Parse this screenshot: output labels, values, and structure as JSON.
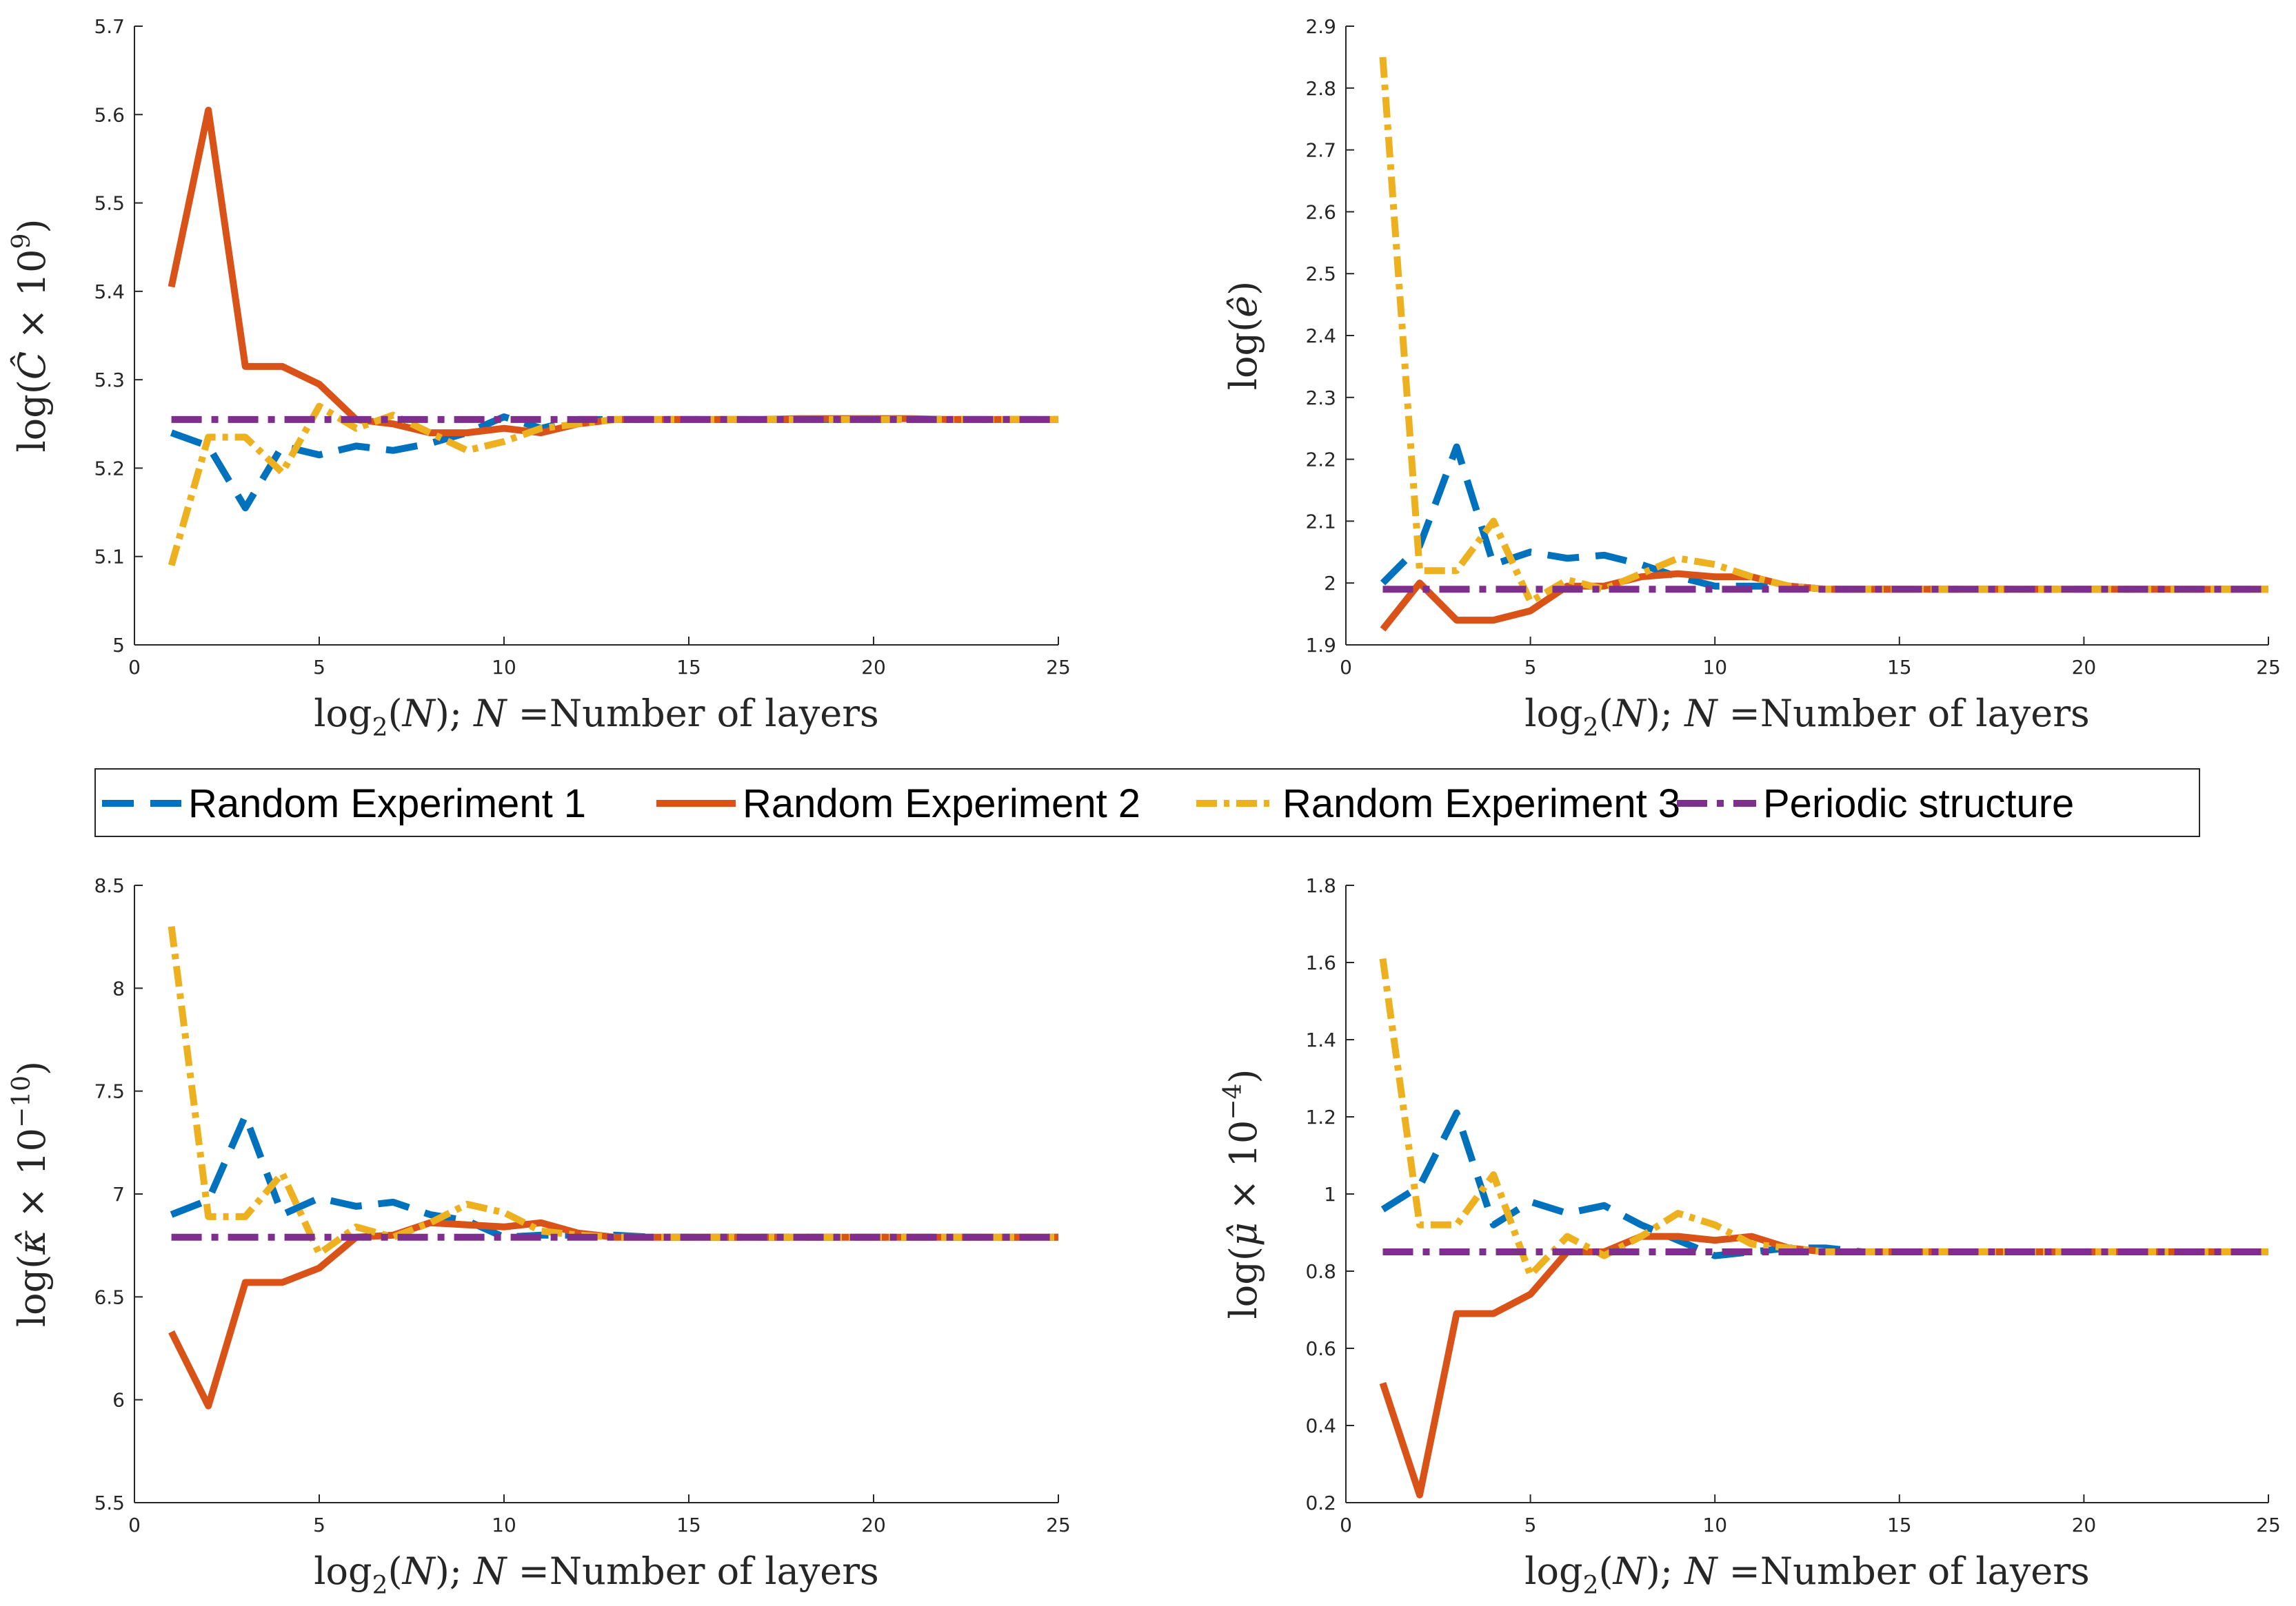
{
  "legend": [
    {
      "label": "Random Experiment 1",
      "color": "#0072BD",
      "style": "dashed"
    },
    {
      "label": "Random Experiment 2",
      "color": "#D95319",
      "style": "solid"
    },
    {
      "label": "Random Experiment 3",
      "color": "#EDB120",
      "style": "dashdot-fine"
    },
    {
      "label": "Periodic structure",
      "color": "#7E2F8E",
      "style": "dashdot"
    }
  ],
  "chart_data": [
    {
      "type": "line",
      "xlabel_parts": {
        "pre": "log",
        "sub": "2",
        "mid": "(N); ",
        "nvar": "N",
        "post": " =Number of layers"
      },
      "ylabel_parts": {
        "pre": "log(",
        "hat": "C",
        "times": " × 10",
        "sup": "9",
        "post": ")"
      },
      "xlim": [
        0,
        25
      ],
      "ylim": [
        5,
        5.7
      ],
      "xticks": [
        "0",
        "5",
        "10",
        "15",
        "20",
        "25"
      ],
      "yticks": [
        "5",
        "5.1",
        "5.2",
        "5.3",
        "5.4",
        "5.5",
        "5.6",
        "5.7"
      ],
      "x": [
        1,
        2,
        3,
        4,
        5,
        6,
        7,
        8,
        9,
        10,
        11,
        12,
        13,
        14,
        15,
        16,
        17,
        18,
        19,
        20,
        21,
        22,
        23,
        24,
        25
      ],
      "series": [
        {
          "name": "Random Experiment 1",
          "values": [
            5.24,
            5.225,
            5.155,
            5.225,
            5.215,
            5.225,
            5.22,
            5.228,
            5.24,
            5.258,
            5.245,
            5.255,
            5.255,
            5.255,
            5.255,
            5.255,
            5.255,
            5.255,
            5.255,
            5.255,
            5.255,
            5.255,
            5.255,
            5.255,
            5.255
          ]
        },
        {
          "name": "Random Experiment 2",
          "values": [
            5.405,
            5.605,
            5.315,
            5.315,
            5.295,
            5.255,
            5.25,
            5.24,
            5.24,
            5.245,
            5.24,
            5.25,
            5.255,
            5.255,
            5.255,
            5.255,
            5.255,
            5.256,
            5.256,
            5.256,
            5.256,
            5.255,
            5.255,
            5.255,
            5.255
          ]
        },
        {
          "name": "Random Experiment 3",
          "values": [
            5.09,
            5.235,
            5.235,
            5.195,
            5.27,
            5.245,
            5.26,
            5.24,
            5.22,
            5.23,
            5.245,
            5.25,
            5.255,
            5.255,
            5.255,
            5.255,
            5.255,
            5.255,
            5.255,
            5.255,
            5.255,
            5.255,
            5.255,
            5.255,
            5.255
          ]
        },
        {
          "name": "Periodic structure",
          "values": [
            5.255,
            5.255,
            5.255,
            5.255,
            5.255,
            5.255,
            5.255,
            5.255,
            5.255,
            5.255,
            5.255,
            5.255,
            5.255,
            5.255,
            5.255,
            5.255,
            5.255,
            5.255,
            5.255,
            5.255,
            5.255,
            5.255,
            5.255,
            5.255,
            5.255
          ]
        }
      ]
    },
    {
      "type": "line",
      "xlabel_parts": {
        "pre": "log",
        "sub": "2",
        "mid": "(N); ",
        "nvar": "N",
        "post": " =Number of layers"
      },
      "ylabel_parts": {
        "pre": "log(",
        "hat": "e",
        "times": "",
        "sup": "",
        "post": ")"
      },
      "xlim": [
        0,
        25
      ],
      "ylim": [
        1.9,
        2.9
      ],
      "xticks": [
        "0",
        "5",
        "10",
        "15",
        "20",
        "25"
      ],
      "yticks": [
        "1.9",
        "2",
        "2.1",
        "2.2",
        "2.3",
        "2.4",
        "2.5",
        "2.6",
        "2.7",
        "2.8",
        "2.9"
      ],
      "x": [
        1,
        2,
        3,
        4,
        5,
        6,
        7,
        8,
        9,
        10,
        11,
        12,
        13,
        14,
        15,
        16,
        17,
        18,
        19,
        20,
        21,
        22,
        23,
        24,
        25
      ],
      "series": [
        {
          "name": "Random Experiment 1",
          "values": [
            2.0,
            2.06,
            2.22,
            2.03,
            2.05,
            2.04,
            2.045,
            2.03,
            2.01,
            1.995,
            1.995,
            1.995,
            1.99,
            1.99,
            1.99,
            1.99,
            1.99,
            1.99,
            1.99,
            1.99,
            1.99,
            1.99,
            1.99,
            1.99,
            1.99
          ]
        },
        {
          "name": "Random Experiment 2",
          "values": [
            1.925,
            2.0,
            1.94,
            1.94,
            1.955,
            1.995,
            1.995,
            2.01,
            2.015,
            2.01,
            2.01,
            1.995,
            1.99,
            1.99,
            1.99,
            1.99,
            1.99,
            1.99,
            1.99,
            1.99,
            1.99,
            1.99,
            1.99,
            1.99,
            1.99
          ]
        },
        {
          "name": "Random Experiment 3",
          "values": [
            2.85,
            2.02,
            2.02,
            2.1,
            1.97,
            2.005,
            1.99,
            2.015,
            2.04,
            2.03,
            2.01,
            1.995,
            1.99,
            1.99,
            1.99,
            1.99,
            1.99,
            1.99,
            1.99,
            1.99,
            1.99,
            1.99,
            1.99,
            1.99,
            1.99
          ]
        },
        {
          "name": "Periodic structure",
          "values": [
            1.99,
            1.99,
            1.99,
            1.99,
            1.99,
            1.99,
            1.99,
            1.99,
            1.99,
            1.99,
            1.99,
            1.99,
            1.99,
            1.99,
            1.99,
            1.99,
            1.99,
            1.99,
            1.99,
            1.99,
            1.99,
            1.99,
            1.99,
            1.99,
            1.99
          ]
        }
      ]
    },
    {
      "type": "line",
      "xlabel_parts": {
        "pre": "log",
        "sub": "2",
        "mid": "(N); ",
        "nvar": "N",
        "post": " =Number of layers"
      },
      "ylabel_parts": {
        "pre": "log(",
        "hat": "κ",
        "times": " × 10",
        "sup": "−10",
        "post": ")"
      },
      "xlim": [
        0,
        25
      ],
      "ylim": [
        5.5,
        8.5
      ],
      "xticks": [
        "0",
        "5",
        "10",
        "15",
        "20",
        "25"
      ],
      "yticks": [
        "5.5",
        "6",
        "6.5",
        "7",
        "7.5",
        "8",
        "8.5"
      ],
      "x": [
        1,
        2,
        3,
        4,
        5,
        6,
        7,
        8,
        9,
        10,
        11,
        12,
        13,
        14,
        15,
        16,
        17,
        18,
        19,
        20,
        21,
        22,
        23,
        24,
        25
      ],
      "series": [
        {
          "name": "Random Experiment 1",
          "values": [
            6.9,
            6.97,
            7.38,
            6.9,
            6.98,
            6.94,
            6.96,
            6.9,
            6.87,
            6.79,
            6.8,
            6.8,
            6.8,
            6.79,
            6.79,
            6.79,
            6.79,
            6.79,
            6.79,
            6.79,
            6.79,
            6.79,
            6.79,
            6.79,
            6.79
          ]
        },
        {
          "name": "Random Experiment 2",
          "values": [
            6.33,
            5.97,
            6.57,
            6.57,
            6.64,
            6.79,
            6.8,
            6.86,
            6.85,
            6.84,
            6.86,
            6.81,
            6.79,
            6.79,
            6.79,
            6.79,
            6.79,
            6.79,
            6.79,
            6.79,
            6.79,
            6.79,
            6.79,
            6.79,
            6.79
          ]
        },
        {
          "name": "Random Experiment 3",
          "values": [
            8.3,
            6.89,
            6.89,
            7.1,
            6.71,
            6.84,
            6.79,
            6.86,
            6.95,
            6.91,
            6.82,
            6.8,
            6.79,
            6.79,
            6.79,
            6.79,
            6.79,
            6.79,
            6.79,
            6.79,
            6.79,
            6.79,
            6.79,
            6.79,
            6.79
          ]
        },
        {
          "name": "Periodic structure",
          "values": [
            6.79,
            6.79,
            6.79,
            6.79,
            6.79,
            6.79,
            6.79,
            6.79,
            6.79,
            6.79,
            6.79,
            6.79,
            6.79,
            6.79,
            6.79,
            6.79,
            6.79,
            6.79,
            6.79,
            6.79,
            6.79,
            6.79,
            6.79,
            6.79,
            6.79
          ]
        }
      ]
    },
    {
      "type": "line",
      "xlabel_parts": {
        "pre": "log",
        "sub": "2",
        "mid": "(N); ",
        "nvar": "N",
        "post": " =Number of layers"
      },
      "ylabel_parts": {
        "pre": "log(",
        "hat": "μ",
        "times": " × 10",
        "sup": "−4",
        "post": ")"
      },
      "xlim": [
        0,
        25
      ],
      "ylim": [
        0.2,
        1.8
      ],
      "xticks": [
        "0",
        "5",
        "10",
        "15",
        "20",
        "25"
      ],
      "yticks": [
        "0.2",
        "0.4",
        "0.6",
        "0.8",
        "1",
        "1.2",
        "1.4",
        "1.6",
        "1.8"
      ],
      "x": [
        1,
        2,
        3,
        4,
        5,
        6,
        7,
        8,
        9,
        10,
        11,
        12,
        13,
        14,
        15,
        16,
        17,
        18,
        19,
        20,
        21,
        22,
        23,
        24,
        25
      ],
      "series": [
        {
          "name": "Random Experiment 1",
          "values": [
            0.96,
            1.02,
            1.21,
            0.92,
            0.98,
            0.95,
            0.97,
            0.92,
            0.88,
            0.84,
            0.85,
            0.86,
            0.86,
            0.85,
            0.85,
            0.85,
            0.85,
            0.85,
            0.85,
            0.85,
            0.85,
            0.85,
            0.85,
            0.85,
            0.85
          ]
        },
        {
          "name": "Random Experiment 2",
          "values": [
            0.51,
            0.22,
            0.69,
            0.69,
            0.74,
            0.85,
            0.85,
            0.89,
            0.89,
            0.88,
            0.89,
            0.86,
            0.85,
            0.85,
            0.85,
            0.85,
            0.85,
            0.85,
            0.85,
            0.85,
            0.85,
            0.85,
            0.85,
            0.85,
            0.85
          ]
        },
        {
          "name": "Random Experiment 3",
          "values": [
            1.61,
            0.92,
            0.92,
            1.05,
            0.79,
            0.89,
            0.84,
            0.89,
            0.95,
            0.92,
            0.87,
            0.86,
            0.85,
            0.85,
            0.85,
            0.85,
            0.85,
            0.85,
            0.85,
            0.85,
            0.85,
            0.85,
            0.85,
            0.85,
            0.85
          ]
        },
        {
          "name": "Periodic structure",
          "values": [
            0.85,
            0.85,
            0.85,
            0.85,
            0.85,
            0.85,
            0.85,
            0.85,
            0.85,
            0.85,
            0.85,
            0.85,
            0.85,
            0.85,
            0.85,
            0.85,
            0.85,
            0.85,
            0.85,
            0.85,
            0.85,
            0.85,
            0.85,
            0.85,
            0.85
          ]
        }
      ]
    }
  ]
}
